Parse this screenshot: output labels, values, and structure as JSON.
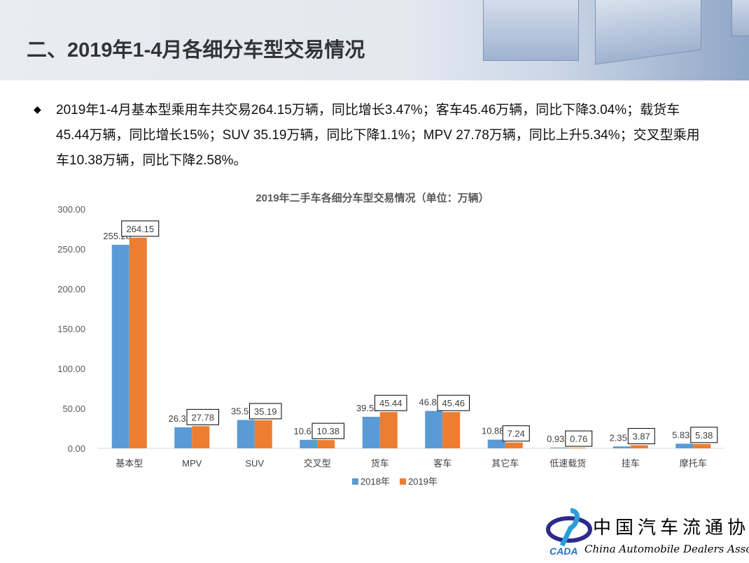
{
  "header": {
    "title": "二、2019年1-4月各细分车型交易情况"
  },
  "summary": {
    "bullet_icon": "diamond-bullet-icon",
    "text": "2019年1-4月基本型乘用车共交易264.15万辆，同比增长3.47%；客车45.46万辆，同比下降3.04%；载货车45.44万辆，同比增长15%；SUV 35.19万辆，同比下降1.1%；MPV 27.78万辆，同比上升5.34%；交叉型乘用车10.38万辆，同比下降2.58%。"
  },
  "chart_data": {
    "type": "bar",
    "title": "2019年二手车各细分车型交易情况（单位：万辆）",
    "categories": [
      "基本型",
      "MPV",
      "SUV",
      "交叉型",
      "货车",
      "客车",
      "其它车",
      "低速载货",
      "挂车",
      "摩托车"
    ],
    "series": [
      {
        "name": "2018年",
        "color": "#5b9bd5",
        "values": [
          255.28,
          26.38,
          35.58,
          10.66,
          39.51,
          46.88,
          10.88,
          0.93,
          2.35,
          5.83
        ]
      },
      {
        "name": "2019年",
        "color": "#ed7d31",
        "values": [
          264.15,
          27.78,
          35.19,
          10.38,
          45.44,
          45.46,
          7.24,
          0.76,
          3.87,
          5.38
        ]
      }
    ],
    "ylim": [
      0,
      300
    ],
    "yticks": [
      "0.00",
      "50.00",
      "100.00",
      "150.00",
      "200.00",
      "250.00",
      "300.00"
    ],
    "legend": "bottom",
    "grid": false
  },
  "logo": {
    "name_cn": "中国汽车流通协会",
    "name_en": "China Automobile Dealers Association",
    "abbr": "CADA"
  }
}
